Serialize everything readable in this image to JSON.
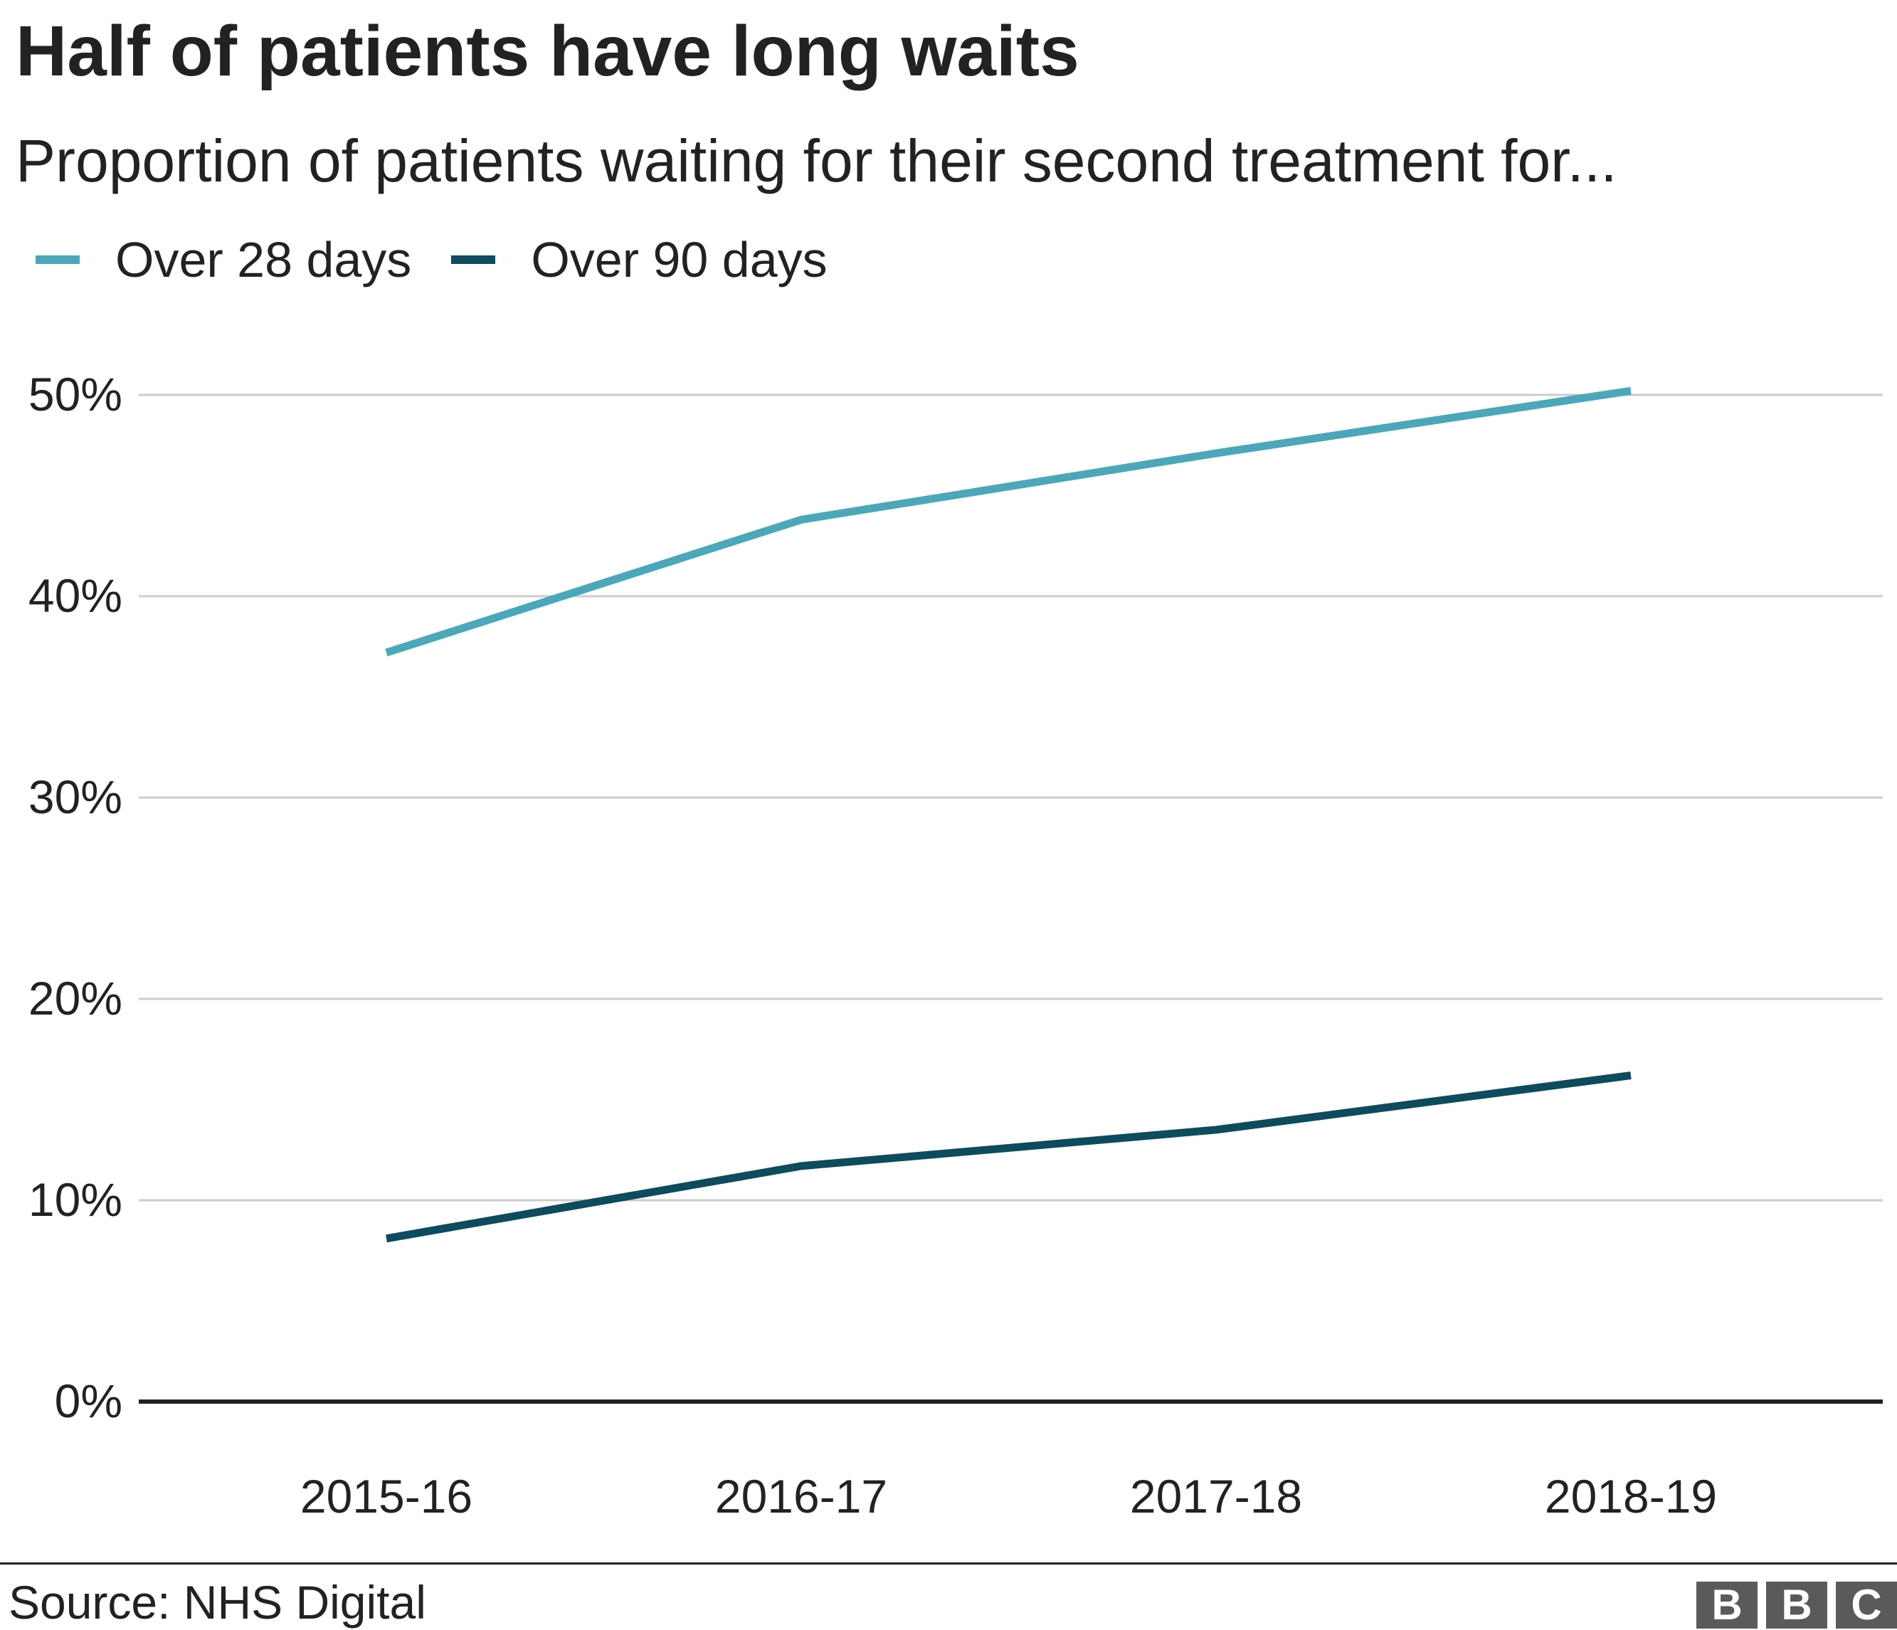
{
  "header": {
    "title": "Half of patients have long waits",
    "subtitle": "Proportion of patients waiting for their second treatment for..."
  },
  "legend": {
    "items": [
      {
        "label": "Over 28 days",
        "color": "#4ba7ba"
      },
      {
        "label": "Over 90 days",
        "color": "#0d4b5e"
      }
    ]
  },
  "footer": {
    "source": "Source: NHS Digital",
    "logo_letters": [
      "B",
      "B",
      "C"
    ]
  },
  "colors": {
    "gridline": "#cccccc",
    "baseline": "#222222",
    "text": "#222222"
  },
  "chart_data": {
    "type": "line",
    "title": "Half of patients have long waits",
    "subtitle": "Proportion of patients waiting for their second treatment for...",
    "xlabel": "",
    "ylabel": "",
    "categories": [
      "2015-16",
      "2016-17",
      "2017-18",
      "2018-19"
    ],
    "series": [
      {
        "name": "Over 28 days",
        "color": "#4ba7ba",
        "values": [
          37.2,
          43.8,
          47.1,
          50.2
        ]
      },
      {
        "name": "Over 90 days",
        "color": "#0d4b5e",
        "values": [
          8.1,
          11.7,
          13.5,
          16.2
        ]
      }
    ],
    "yticks": [
      0,
      10,
      20,
      30,
      40,
      50
    ],
    "ytick_labels": [
      "0%",
      "10%",
      "20%",
      "30%",
      "40%",
      "50%"
    ],
    "ylim": [
      0,
      50
    ],
    "grid": true,
    "legend_position": "top-left"
  }
}
